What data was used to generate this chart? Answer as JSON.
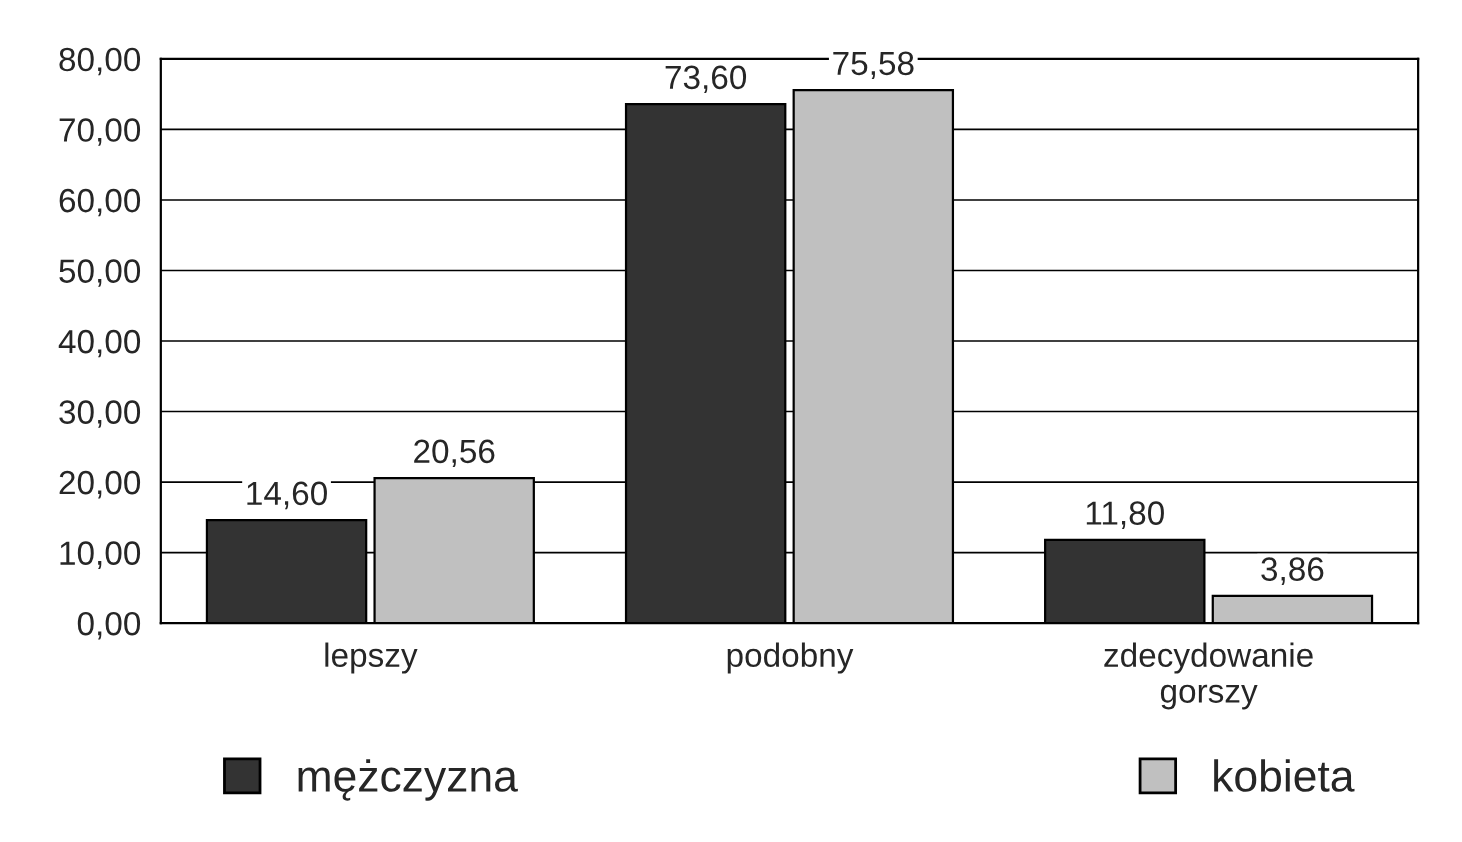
{
  "chart_data": {
    "type": "bar",
    "categories": [
      "lepszy",
      "podobny",
      "zdecydowanie gorszy"
    ],
    "series": [
      {
        "name": "mężczyzna",
        "color": "#333333",
        "values": [
          14.6,
          73.6,
          11.8
        ],
        "value_labels": [
          "14,60",
          "73,60",
          "11,80"
        ]
      },
      {
        "name": "kobieta",
        "color": "#c0c0c0",
        "values": [
          20.56,
          75.58,
          3.86
        ],
        "value_labels": [
          "20,56",
          "75,58",
          "3,86"
        ]
      }
    ],
    "ylim": [
      0,
      80
    ],
    "yticks": [
      {
        "value": 0,
        "label": "0,00"
      },
      {
        "value": 10,
        "label": "10,00"
      },
      {
        "value": 20,
        "label": "20,00"
      },
      {
        "value": 30,
        "label": "30,00"
      },
      {
        "value": 40,
        "label": "40,00"
      },
      {
        "value": 50,
        "label": "50,00"
      },
      {
        "value": 60,
        "label": "60,00"
      },
      {
        "value": 70,
        "label": "70,00"
      },
      {
        "value": 80,
        "label": "80,00"
      }
    ],
    "grid": "y",
    "legend": "bottom"
  }
}
